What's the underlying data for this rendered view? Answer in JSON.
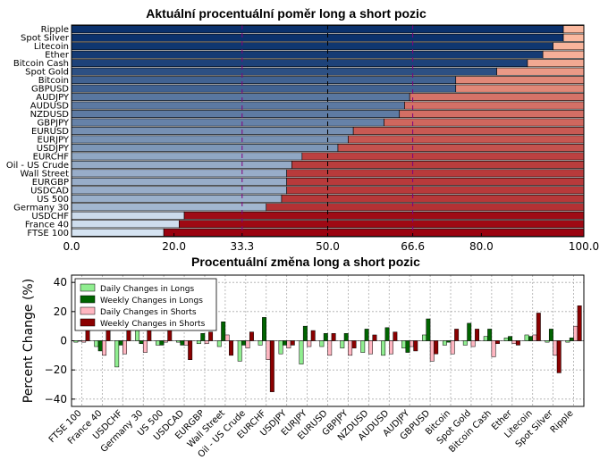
{
  "chart_data": [
    {
      "type": "bar",
      "orientation": "horizontal",
      "stacked": true,
      "title": "Aktuální procentuální poměr long a short pozic",
      "categories": [
        "FTSE 100",
        "France 40",
        "USDCHF",
        "Germany 30",
        "US 500",
        "USDCAD",
        "EURGBP",
        "Wall Street",
        "Oil - US Crude",
        "EURCHF",
        "USDJPY",
        "EURJPY",
        "EURUSD",
        "GBPJPY",
        "NZDUSD",
        "AUDUSD",
        "AUDJPY",
        "GBPUSD",
        "Bitcoin",
        "Spot Gold",
        "Bitcoin Cash",
        "Ether",
        "Litecoin",
        "Spot Silver",
        "Ripple"
      ],
      "series": [
        {
          "values": [
            18,
            21,
            22,
            38,
            41,
            42,
            42,
            42,
            43,
            45,
            52,
            54,
            55,
            61,
            64,
            65,
            66,
            75,
            75,
            83,
            89,
            92,
            94,
            96,
            96
          ]
        },
        {
          "values": [
            82,
            79,
            78,
            62,
            59,
            58,
            58,
            58,
            57,
            55,
            48,
            46,
            45,
            39,
            36,
            35,
            34,
            25,
            25,
            17,
            11,
            8,
            6,
            4,
            4
          ]
        }
      ],
      "xlim": [
        0,
        100
      ],
      "xticks": [
        "0.0",
        "20.0",
        "33.3",
        "50.0",
        "66.6",
        "80.0",
        "100.0"
      ],
      "xtick_values": [
        0,
        20,
        33.3,
        50,
        66.6,
        80,
        100
      ],
      "reference_lines": [
        33.3,
        50,
        66.6
      ],
      "colors": {
        "long_high": "#08306b",
        "long_low": "#deebf7",
        "short_low": "#fcbba1",
        "short_high": "#99000d",
        "ref_purple": "#800080"
      }
    },
    {
      "type": "bar",
      "title": "Procentuální změna long a short pozic",
      "ylabel": "Percent Change (%)",
      "ylim": [
        -45,
        45
      ],
      "yticks": [
        "−40",
        "−20",
        "0",
        "20",
        "40"
      ],
      "ytick_values": [
        -40,
        -20,
        0,
        20,
        40
      ],
      "grid": true,
      "legend": "top-left",
      "categories": [
        "FTSE 100",
        "France 40",
        "USDCHF",
        "Germany 30",
        "US 500",
        "USDCAD",
        "EURGBP",
        "Wall Street",
        "Oil - US Crude",
        "EURCHF",
        "USDJPY",
        "EURJPY",
        "EURUSD",
        "GBPJPY",
        "NZDUSD",
        "AUDUSD",
        "AUDJPY",
        "GBPUSD",
        "Bitcoin",
        "Spot Gold",
        "Bitcoin Cash",
        "Ether",
        "Litecoin",
        "Spot Silver",
        "Ripple"
      ],
      "series": [
        {
          "name": "Daily Changes in Longs",
          "color": "#90ee90",
          "values": [
            -1,
            -4,
            -18,
            7,
            -3,
            -1,
            -2,
            -4,
            -14,
            -3,
            -9,
            -16,
            -4,
            -5,
            -8,
            -10,
            -5,
            4,
            -3,
            -3,
            3,
            2,
            4,
            -1,
            -1
          ]
        },
        {
          "name": "Weekly Changes in Longs",
          "color": "#006400",
          "values": [
            0,
            -7,
            -3,
            -2,
            -3,
            -3,
            5,
            13,
            -3,
            16,
            -3,
            10,
            5,
            5,
            8,
            9,
            -8,
            15,
            -1,
            12,
            8,
            3,
            3,
            8,
            2
          ]
        },
        {
          "name": "Daily Changes in Shorts",
          "color": "#ffb6c1",
          "values": [
            -1,
            -10,
            -9,
            -8,
            -1,
            -3,
            -2,
            4,
            -5,
            -13,
            -5,
            -4,
            -10,
            -10,
            -9,
            -9,
            -4,
            -14,
            -9,
            -4,
            -11,
            -2,
            4,
            -10,
            10
          ]
        },
        {
          "name": "Weekly Changes in Shorts",
          "color": "#8b0000",
          "values": [
            9,
            14,
            13,
            10,
            10,
            -13,
            6,
            -10,
            6,
            -35,
            -3,
            7,
            5,
            -5,
            4,
            6,
            -7,
            -9,
            8,
            8,
            -2,
            -3,
            19,
            -22,
            24
          ]
        }
      ]
    }
  ]
}
